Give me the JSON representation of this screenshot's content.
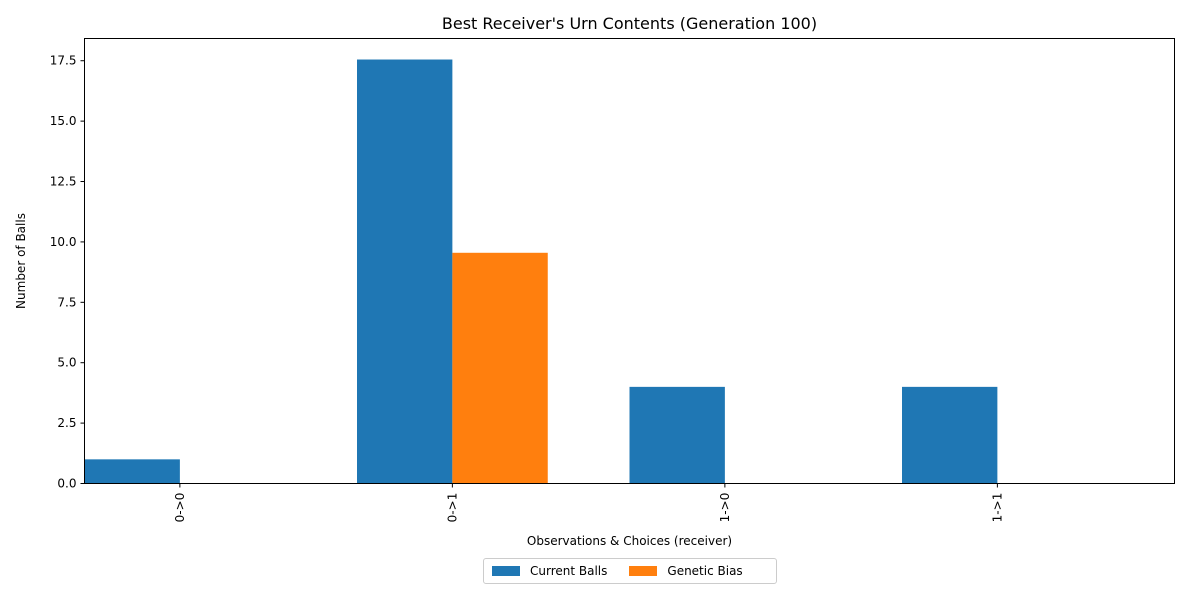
{
  "chart_data": {
    "type": "bar",
    "title": "Best Receiver's Urn Contents (Generation 100)",
    "xlabel": "Observations & Choices (receiver)",
    "ylabel": "Number of Balls",
    "categories": [
      "0->0",
      "0->1",
      "1->0",
      "1->1"
    ],
    "series": [
      {
        "name": "Current Balls",
        "color": "#1f77b4",
        "values": [
          1.0,
          17.55,
          4.0,
          4.0
        ]
      },
      {
        "name": "Genetic Bias",
        "color": "#ff7f0e",
        "values": [
          0.0,
          9.55,
          0.0,
          0.0
        ]
      }
    ],
    "ylim": [
      0,
      18.42
    ],
    "yticks": [
      "0.0",
      "2.5",
      "5.0",
      "7.5",
      "10.0",
      "12.5",
      "15.0",
      "17.5"
    ],
    "grid": false,
    "legend_position": "bottom-center"
  }
}
